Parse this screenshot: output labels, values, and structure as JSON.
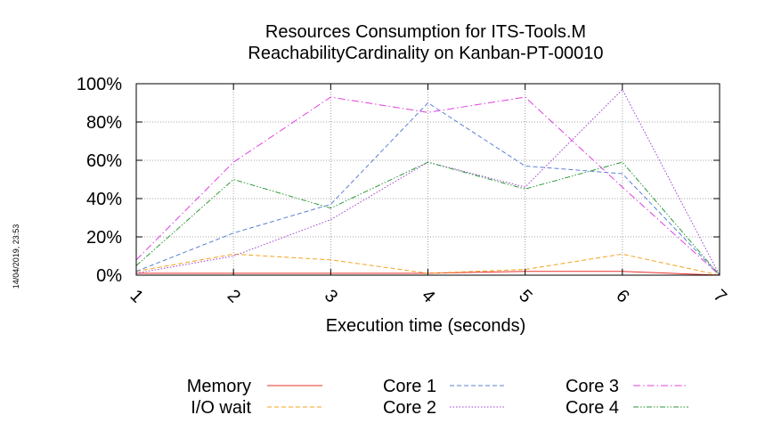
{
  "chart_data": {
    "type": "line",
    "title": [
      "Resources Consumption for ITS-Tools.M",
      "ReachabilityCardinality on Kanban-PT-00010"
    ],
    "xlabel": "Execution time (seconds)",
    "ylabel": "",
    "x": [
      1,
      2,
      3,
      4,
      5,
      6,
      7
    ],
    "xlim": [
      1,
      7
    ],
    "ylim": [
      0,
      100
    ],
    "x_ticks": [
      "1",
      "2",
      "3",
      "4",
      "5",
      "6",
      "7"
    ],
    "y_ticks": [
      "0%",
      "20%",
      "40%",
      "60%",
      "80%",
      "100%"
    ],
    "grid": true,
    "legend_position": "bottom",
    "timestamp": "14/04/2019, 23:53",
    "series": [
      {
        "name": "Memory",
        "color": "#e8302a",
        "dash": "solid",
        "values": [
          1,
          1,
          1,
          1,
          2,
          2,
          0
        ]
      },
      {
        "name": "I/O wait",
        "color": "#f5a21b",
        "dash": "dashed",
        "values": [
          2,
          11,
          8,
          1,
          3,
          11,
          0
        ]
      },
      {
        "name": "Core 1",
        "color": "#5b7fd6",
        "dash": "dashed",
        "values": [
          2,
          22,
          37,
          90,
          57,
          53,
          0
        ]
      },
      {
        "name": "Core 2",
        "color": "#a040d0",
        "dash": "dotted",
        "values": [
          1,
          10,
          29,
          59,
          46,
          97,
          0
        ]
      },
      {
        "name": "Core 3",
        "color": "#e040e0",
        "dash": "dashdot",
        "values": [
          8,
          59,
          93,
          85,
          93,
          46,
          0
        ]
      },
      {
        "name": "Core 4",
        "color": "#2e9a3a",
        "dash": "dashdotdot",
        "values": [
          5,
          50,
          35,
          59,
          45,
          59,
          0
        ]
      }
    ]
  }
}
